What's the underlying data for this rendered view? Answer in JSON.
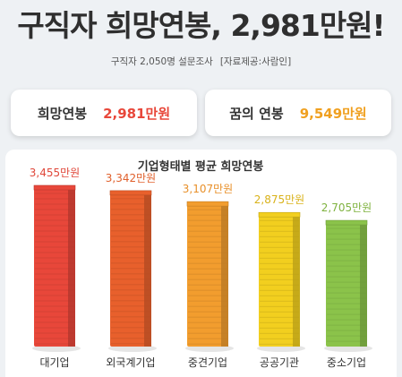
{
  "headline": "구직자 희망연봉, 2,981만원!",
  "subline": {
    "survey": "구직자 2,050명 설문조사",
    "source": "[자료제공:사람인]"
  },
  "cards": {
    "hope": {
      "label": "희망연봉",
      "value": "2,981만원",
      "color": "#e8473a"
    },
    "dream": {
      "label": "꿈의 연봉",
      "value": "9,549만원",
      "color": "#f0a020"
    }
  },
  "chart_data": {
    "type": "bar",
    "title": "기업형태별 평균 희망연봉",
    "unit": "만원",
    "categories": [
      "대기업",
      "외국계기업",
      "중견기업",
      "공공기관",
      "중소기업"
    ],
    "values": [
      3455,
      3342,
      3107,
      2875,
      2705
    ],
    "value_labels": [
      "3,455만원",
      "3,342만원",
      "3,107만원",
      "2,875만원",
      "2,705만원"
    ],
    "colors": [
      "#e8473a",
      "#e8602c",
      "#f29d2e",
      "#f2cf1f",
      "#8bc34a"
    ],
    "label_colors": [
      "#e0473a",
      "#e0602c",
      "#e8902a",
      "#d9b21a",
      "#7fb23f"
    ],
    "legend": "none",
    "grid": false
  }
}
